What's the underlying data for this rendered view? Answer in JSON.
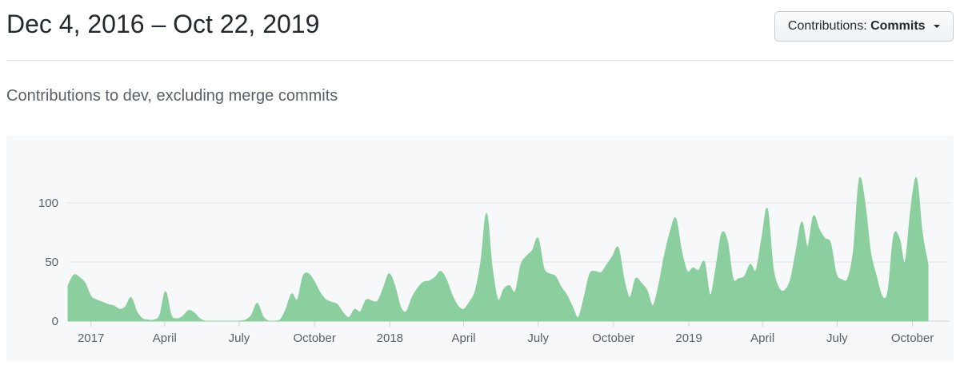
{
  "header": {
    "title": "Dec 4, 2016 – Oct 22, 2019",
    "contributions_button": {
      "prefix": "Contributions:",
      "value": "Commits",
      "caret_icon": "dropdown-caret"
    }
  },
  "subtitle": "Contributions to dev, excluding merge commits",
  "chart_data": {
    "type": "area",
    "title": "Contributions to dev, excluding merge commits",
    "series_name": "Commits",
    "date_start": "Dec 4, 2016",
    "date_end": "Oct 22, 2019",
    "x_unit": "week",
    "total_days": 1052,
    "grid": true,
    "legend_position": "none",
    "ylim": [
      0,
      155
    ],
    "y_ticks": [
      0,
      50,
      100
    ],
    "x_ticks": [
      {
        "label": "2017",
        "day": 28
      },
      {
        "label": "April",
        "day": 118
      },
      {
        "label": "July",
        "day": 209
      },
      {
        "label": "October",
        "day": 301
      },
      {
        "label": "2018",
        "day": 393
      },
      {
        "label": "April",
        "day": 483
      },
      {
        "label": "July",
        "day": 574
      },
      {
        "label": "October",
        "day": 666
      },
      {
        "label": "2019",
        "day": 758
      },
      {
        "label": "April",
        "day": 848
      },
      {
        "label": "July",
        "day": 939
      },
      {
        "label": "October",
        "day": 1031
      }
    ],
    "values": [
      30,
      39,
      37,
      32,
      21,
      18,
      16,
      14,
      13,
      10,
      12,
      20,
      8,
      2,
      1,
      1,
      5,
      25,
      5,
      2,
      4,
      9,
      7,
      2,
      0,
      0,
      0,
      0,
      0,
      0,
      0,
      1,
      5,
      15,
      4,
      0,
      0,
      1,
      10,
      23,
      18,
      38,
      40,
      33,
      24,
      18,
      16,
      14,
      7,
      3,
      10,
      8,
      18,
      17,
      17,
      28,
      40,
      30,
      12,
      8,
      20,
      28,
      33,
      34,
      37,
      42,
      35,
      22,
      13,
      10,
      16,
      25,
      50,
      91,
      45,
      18,
      27,
      30,
      25,
      48,
      55,
      60,
      70,
      45,
      40,
      38,
      29,
      22,
      12,
      3,
      20,
      40,
      42,
      41,
      48,
      55,
      62,
      35,
      20,
      36,
      32,
      26,
      13,
      30,
      55,
      75,
      87,
      60,
      42,
      45,
      43,
      50,
      22,
      45,
      74,
      68,
      36,
      36,
      38,
      48,
      43,
      70,
      95,
      45,
      28,
      26,
      35,
      60,
      84,
      63,
      89,
      78,
      70,
      66,
      40,
      35,
      36,
      60,
      120,
      100,
      58,
      38,
      21,
      25,
      72,
      70,
      50,
      95,
      121,
      75,
      48
    ],
    "area_color": "#8ccf9e",
    "grid_color": "#e3e6e8",
    "axis_line_color": "#d1d5da",
    "axis_text_color": "#586069",
    "panel_background": "#f6f8fa"
  }
}
